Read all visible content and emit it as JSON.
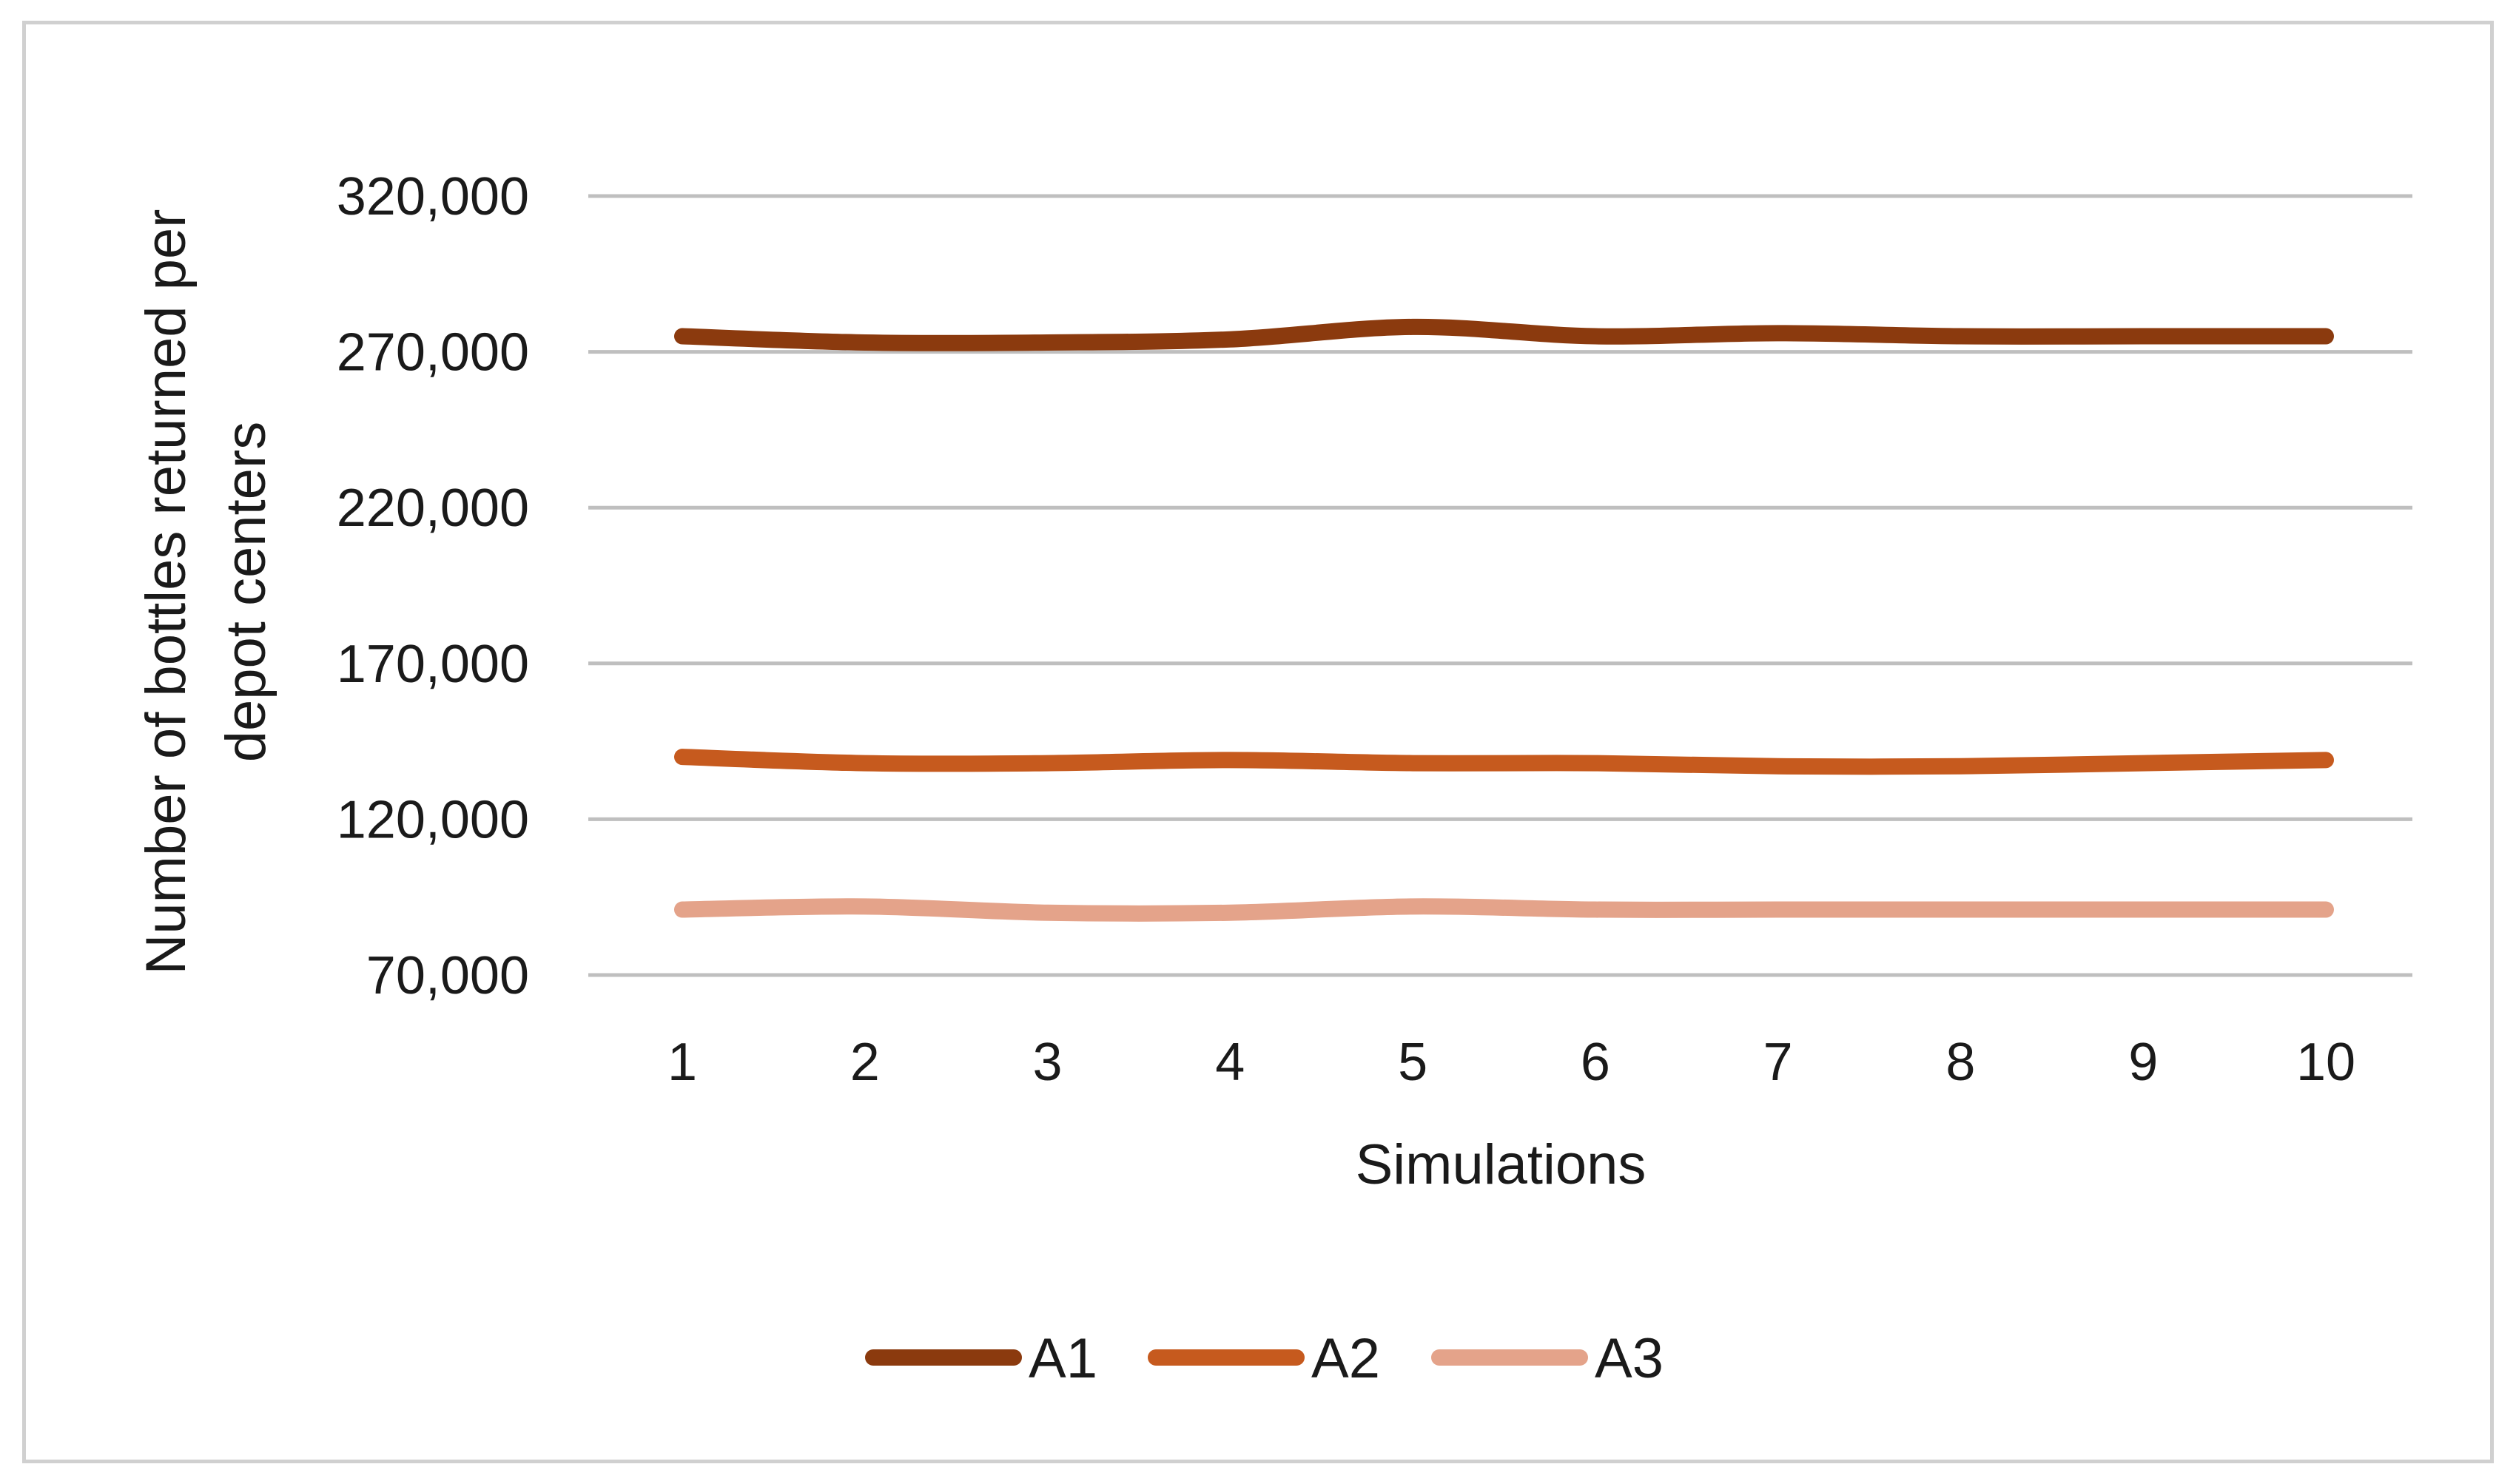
{
  "chart_data": {
    "type": "line",
    "title": "",
    "xlabel": "Simulations",
    "ylabel_line1": "Number of bottles returned per",
    "ylabel_line2": "depot centers",
    "categories": [
      "1",
      "2",
      "3",
      "4",
      "5",
      "6",
      "7",
      "8",
      "9",
      "10"
    ],
    "y_ticks": [
      "70,000",
      "120,000",
      "170,000",
      "220,000",
      "270,000",
      "320,000"
    ],
    "y_tick_values": [
      70000,
      120000,
      170000,
      220000,
      270000,
      320000
    ],
    "ylim": [
      70000,
      320000
    ],
    "grid": true,
    "legend_position": "bottom",
    "series": [
      {
        "name": "A1",
        "color": "#8B3A0E",
        "values": [
          275000,
          273000,
          273000,
          274000,
          278000,
          275000,
          276000,
          275000,
          275000,
          275000
        ]
      },
      {
        "name": "A2",
        "color": "#C65A1E",
        "values": [
          140000,
          138000,
          138000,
          139000,
          138000,
          138000,
          137000,
          137000,
          138000,
          139000
        ]
      },
      {
        "name": "A3",
        "color": "#E4A38A",
        "values": [
          91000,
          92000,
          90000,
          90000,
          92000,
          91000,
          91000,
          91000,
          91000,
          91000
        ]
      }
    ]
  }
}
